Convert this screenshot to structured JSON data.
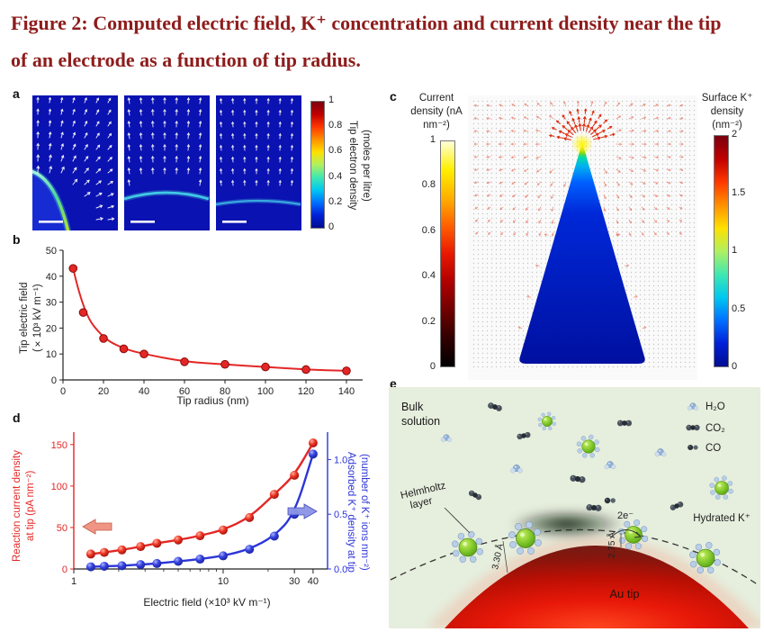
{
  "figure": {
    "title": "Figure 2: Computed electric field, K⁺ concentration and current density near the tip of an electrode as a function of tip radius."
  },
  "colors": {
    "title_text": "#8e1c1c",
    "deep_blue_field": "#0a12b2",
    "red_series": "#e32726",
    "blue_series": "#2c35d8",
    "cone_body": "#0010a0",
    "au_tip_red": "#e81808",
    "panel_e_bg": "#e6eedd"
  },
  "panels": {
    "a": {
      "label": "a"
    },
    "b": {
      "label": "b"
    },
    "c": {
      "label": "c"
    },
    "d": {
      "label": "d"
    },
    "e": {
      "label": "e",
      "labels": {
        "bulk1": "Bulk",
        "bulk2": "solution",
        "helm1": "Helmholtz",
        "helm2": "layer",
        "d330": "3.30 Å",
        "d275": "2.75 Å",
        "e2": "2e⁻",
        "au": "Au tip"
      },
      "legend": [
        {
          "name": "H₂O"
        },
        {
          "name": "CO₂"
        },
        {
          "name": "CO"
        },
        {
          "name": "Hydrated K⁺"
        }
      ]
    }
  },
  "chart_data": [
    {
      "id": "a",
      "type": "heatmap",
      "panels": 3,
      "description": "Electric field arrows and tip electron density around electrode tips of three increasing tip radii; white scale bars shown",
      "colorbar": {
        "label": "Tip electron density (moles per litre)",
        "label_lines": [
          "Tip electron density",
          "(moles per litre)"
        ],
        "range": [
          0,
          1
        ],
        "ticks": [
          0,
          0.2,
          0.4,
          0.6,
          0.8,
          1
        ],
        "colormap": "jet"
      }
    },
    {
      "id": "b",
      "type": "scatter",
      "xlabel": "Tip radius (nm)",
      "ylabel": "Tip electric field (×10³ kV m⁻¹)",
      "ylabel_lines": [
        "Tip electric field",
        "(×10³ kV m⁻¹)"
      ],
      "xlim": [
        0,
        148
      ],
      "ylim": [
        0,
        50
      ],
      "xticks": [
        0,
        20,
        40,
        60,
        80,
        100,
        120,
        140
      ],
      "yticks": [
        0,
        10,
        20,
        30,
        40,
        50
      ],
      "series": [
        {
          "name": "Tip electric field",
          "color": "#e32726",
          "x": [
            5,
            10,
            20,
            30,
            40,
            60,
            80,
            100,
            120,
            140
          ],
          "y": [
            43,
            26,
            16,
            12,
            10,
            7,
            6,
            5,
            4,
            3.5
          ]
        }
      ]
    },
    {
      "id": "c",
      "type": "heatmap",
      "description": "Current density and surface K⁺ density computed on a cone-shaped Au tip; field arrows concentrate at the apex",
      "colorbar_left": {
        "label": "Current density (nA nm⁻²)",
        "range": [
          0,
          1
        ],
        "ticks": [
          0,
          0.2,
          0.4,
          0.6,
          0.8,
          1
        ],
        "colormap": "hot"
      },
      "colorbar_right": {
        "label": "Surface K⁺ density (nm⁻²)",
        "range": [
          0,
          2
        ],
        "ticks": [
          0,
          0.5,
          1,
          1.5,
          2
        ],
        "colormap": "jet"
      }
    },
    {
      "id": "d",
      "type": "scatter",
      "xscale": "log",
      "xlabel": "Electric field (×10³ kV m⁻¹)",
      "xlim": [
        1,
        50
      ],
      "xticks": [
        1,
        10,
        30,
        40
      ],
      "xminorticks": [
        2,
        3,
        4,
        5,
        6,
        7,
        8,
        9,
        20
      ],
      "left_axis": {
        "label": "Reaction current density at tip (pA nm⁻²)",
        "label_lines": [
          "Reaction current density",
          "at tip (pA nm⁻²)"
        ],
        "color": "#e32726",
        "ylim": [
          0,
          165
        ],
        "yticks": [
          0,
          50,
          100,
          150
        ]
      },
      "right_axis": {
        "label": "Adsorbed K⁺ density at tip (number of K⁺ ions nm⁻²)",
        "label_lines": [
          "Adsorbed K⁺ density at tip",
          "(number of K⁺ ions nm⁻²)"
        ],
        "color": "#2c35d8",
        "ylim": [
          0,
          1.25
        ],
        "yticks": [
          0,
          0.5,
          1
        ]
      },
      "series": [
        {
          "name": "Reaction current density at tip",
          "axis": "left",
          "color": "#e32726",
          "x": [
            1.3,
            1.6,
            2.1,
            2.8,
            3.6,
            5,
            7,
            10,
            15,
            22,
            30,
            40
          ],
          "y": [
            18,
            20,
            23,
            27,
            31,
            35,
            40,
            47,
            62,
            90,
            113,
            152
          ]
        },
        {
          "name": "Adsorbed K⁺ density at tip",
          "axis": "right",
          "color": "#2c35d8",
          "x": [
            1.3,
            1.6,
            2.1,
            2.8,
            3.6,
            5,
            7,
            10,
            15,
            22,
            30,
            40
          ],
          "y": [
            0.02,
            0.025,
            0.03,
            0.04,
            0.05,
            0.07,
            0.09,
            0.12,
            0.18,
            0.3,
            0.5,
            1.05
          ]
        }
      ]
    }
  ]
}
